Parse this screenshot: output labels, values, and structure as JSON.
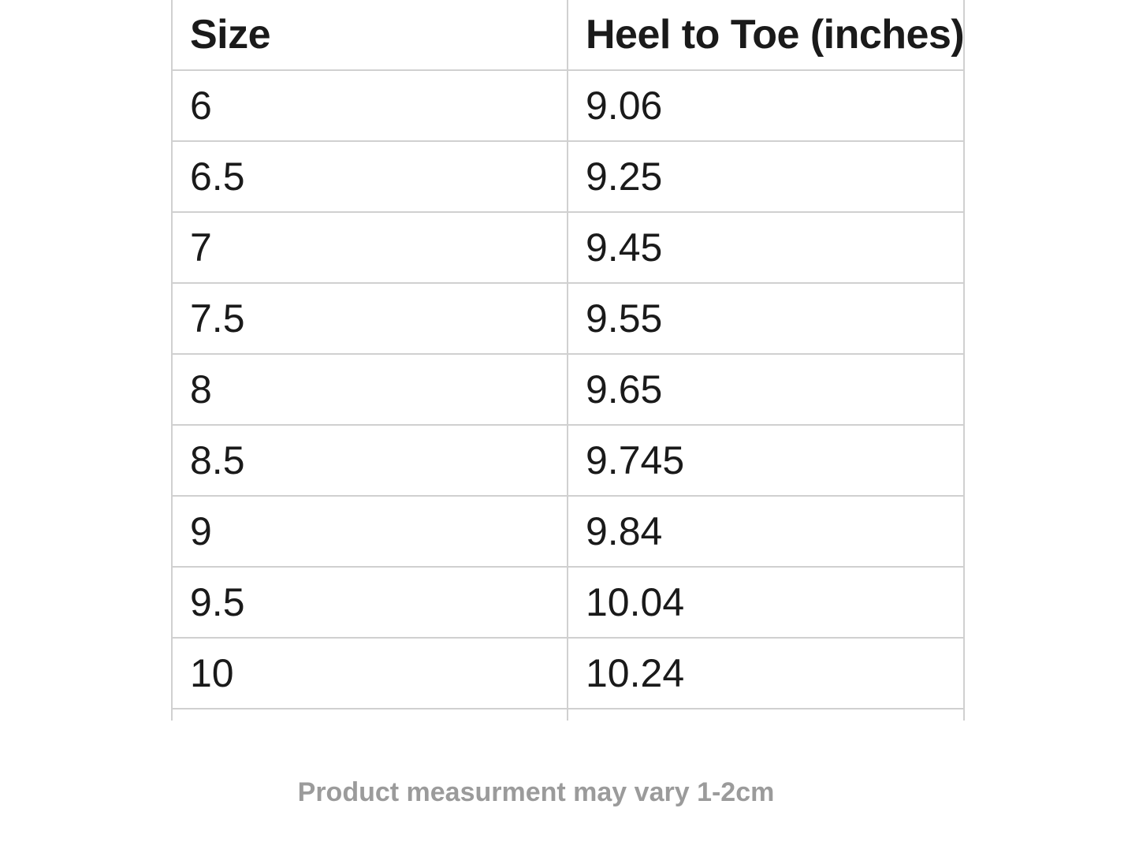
{
  "table": {
    "columns": [
      "Size",
      "Heel to Toe (inches)"
    ],
    "rows": [
      {
        "size": "6",
        "heel_to_toe": "9.06"
      },
      {
        "size": "6.5",
        "heel_to_toe": "9.25"
      },
      {
        "size": "7",
        "heel_to_toe": "9.45"
      },
      {
        "size": "7.5",
        "heel_to_toe": "9.55"
      },
      {
        "size": "8",
        "heel_to_toe": "9.65"
      },
      {
        "size": "8.5",
        "heel_to_toe": "9.745"
      },
      {
        "size": "9",
        "heel_to_toe": "9.84"
      },
      {
        "size": "9.5",
        "heel_to_toe": "10.04"
      },
      {
        "size": "10",
        "heel_to_toe": "10.24"
      }
    ]
  },
  "footer": {
    "note": "Product measurment may vary 1-2cm"
  },
  "colors": {
    "background": "#ffffff",
    "table_border": "#d0d0d0",
    "cell_text": "#1a1a1a",
    "note_text": "#9b9b9b"
  }
}
